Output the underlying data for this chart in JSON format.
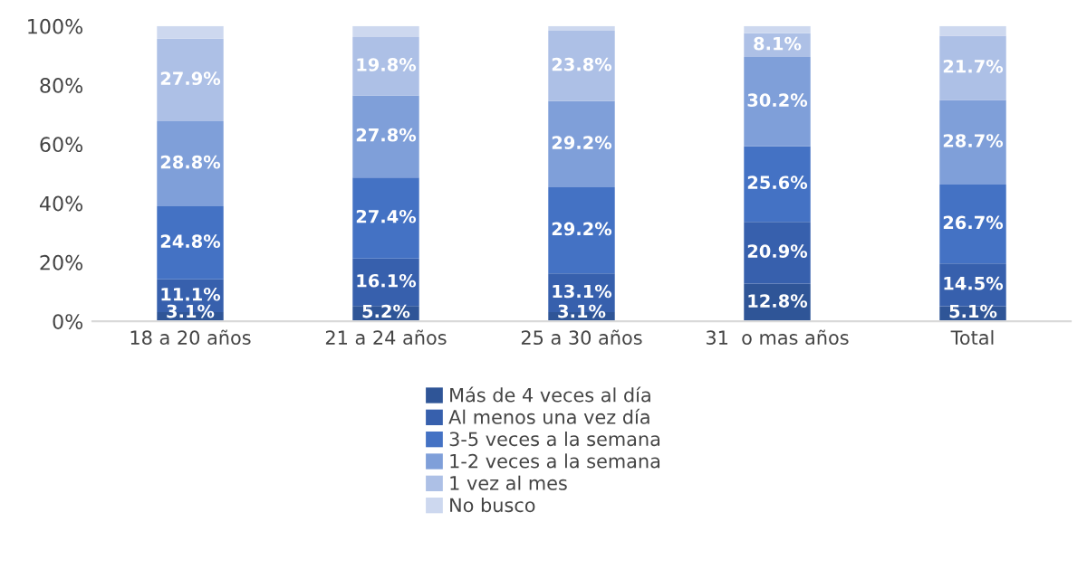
{
  "chart_data": {
    "type": "bar",
    "stacked": true,
    "categories": [
      "18 a 20 años",
      "21 a 24 años",
      "25 a 30 años",
      "31  o mas años",
      "Total"
    ],
    "series": [
      {
        "name": "Más de 4 veces al día",
        "color": "#2f5597",
        "values": [
          3.1,
          5.2,
          3.1,
          12.8,
          5.1
        ],
        "value_labels": [
          "3.1%",
          "5.2%",
          "3.1%",
          "12.8%",
          "5.1%"
        ]
      },
      {
        "name": "Al menos una vez día",
        "color": "#3760ad",
        "values": [
          11.1,
          16.1,
          13.1,
          20.9,
          14.5
        ],
        "value_labels": [
          "11.1%",
          "16.1%",
          "13.1%",
          "20.9%",
          "14.5%"
        ]
      },
      {
        "name": "3-5 veces a la semana",
        "color": "#4472c4",
        "values": [
          24.8,
          27.4,
          29.2,
          25.6,
          26.7
        ],
        "value_labels": [
          "24.8%",
          "27.4%",
          "29.2%",
          "25.6%",
          "26.7%"
        ]
      },
      {
        "name": "1-2 veces a la semana",
        "color": "#7f9fd9",
        "values": [
          28.8,
          27.8,
          29.2,
          30.2,
          28.7
        ],
        "value_labels": [
          "28.8%",
          "27.8%",
          "29.2%",
          "30.2%",
          "28.7%"
        ]
      },
      {
        "name": "1 vez al mes",
        "color": "#adc0e6",
        "values": [
          27.9,
          19.8,
          23.8,
          8.1,
          21.7
        ],
        "value_labels": [
          "27.9%",
          "19.8%",
          "23.8%",
          "8.1%",
          "21.7%"
        ]
      },
      {
        "name": "No busco",
        "color": "#cdd8ef",
        "values": [
          4.3,
          3.7,
          1.6,
          2.4,
          3.3
        ],
        "value_labels": [
          null,
          null,
          null,
          null,
          null
        ]
      }
    ],
    "ylim": [
      0,
      100
    ],
    "yticks": [
      {
        "value": 0,
        "label": "0%"
      },
      {
        "value": 20,
        "label": "20%"
      },
      {
        "value": 40,
        "label": "40%"
      },
      {
        "value": 60,
        "label": "60%"
      },
      {
        "value": 80,
        "label": "80%"
      },
      {
        "value": 100,
        "label": "100%"
      }
    ],
    "grid": false,
    "legend": "bottom"
  }
}
